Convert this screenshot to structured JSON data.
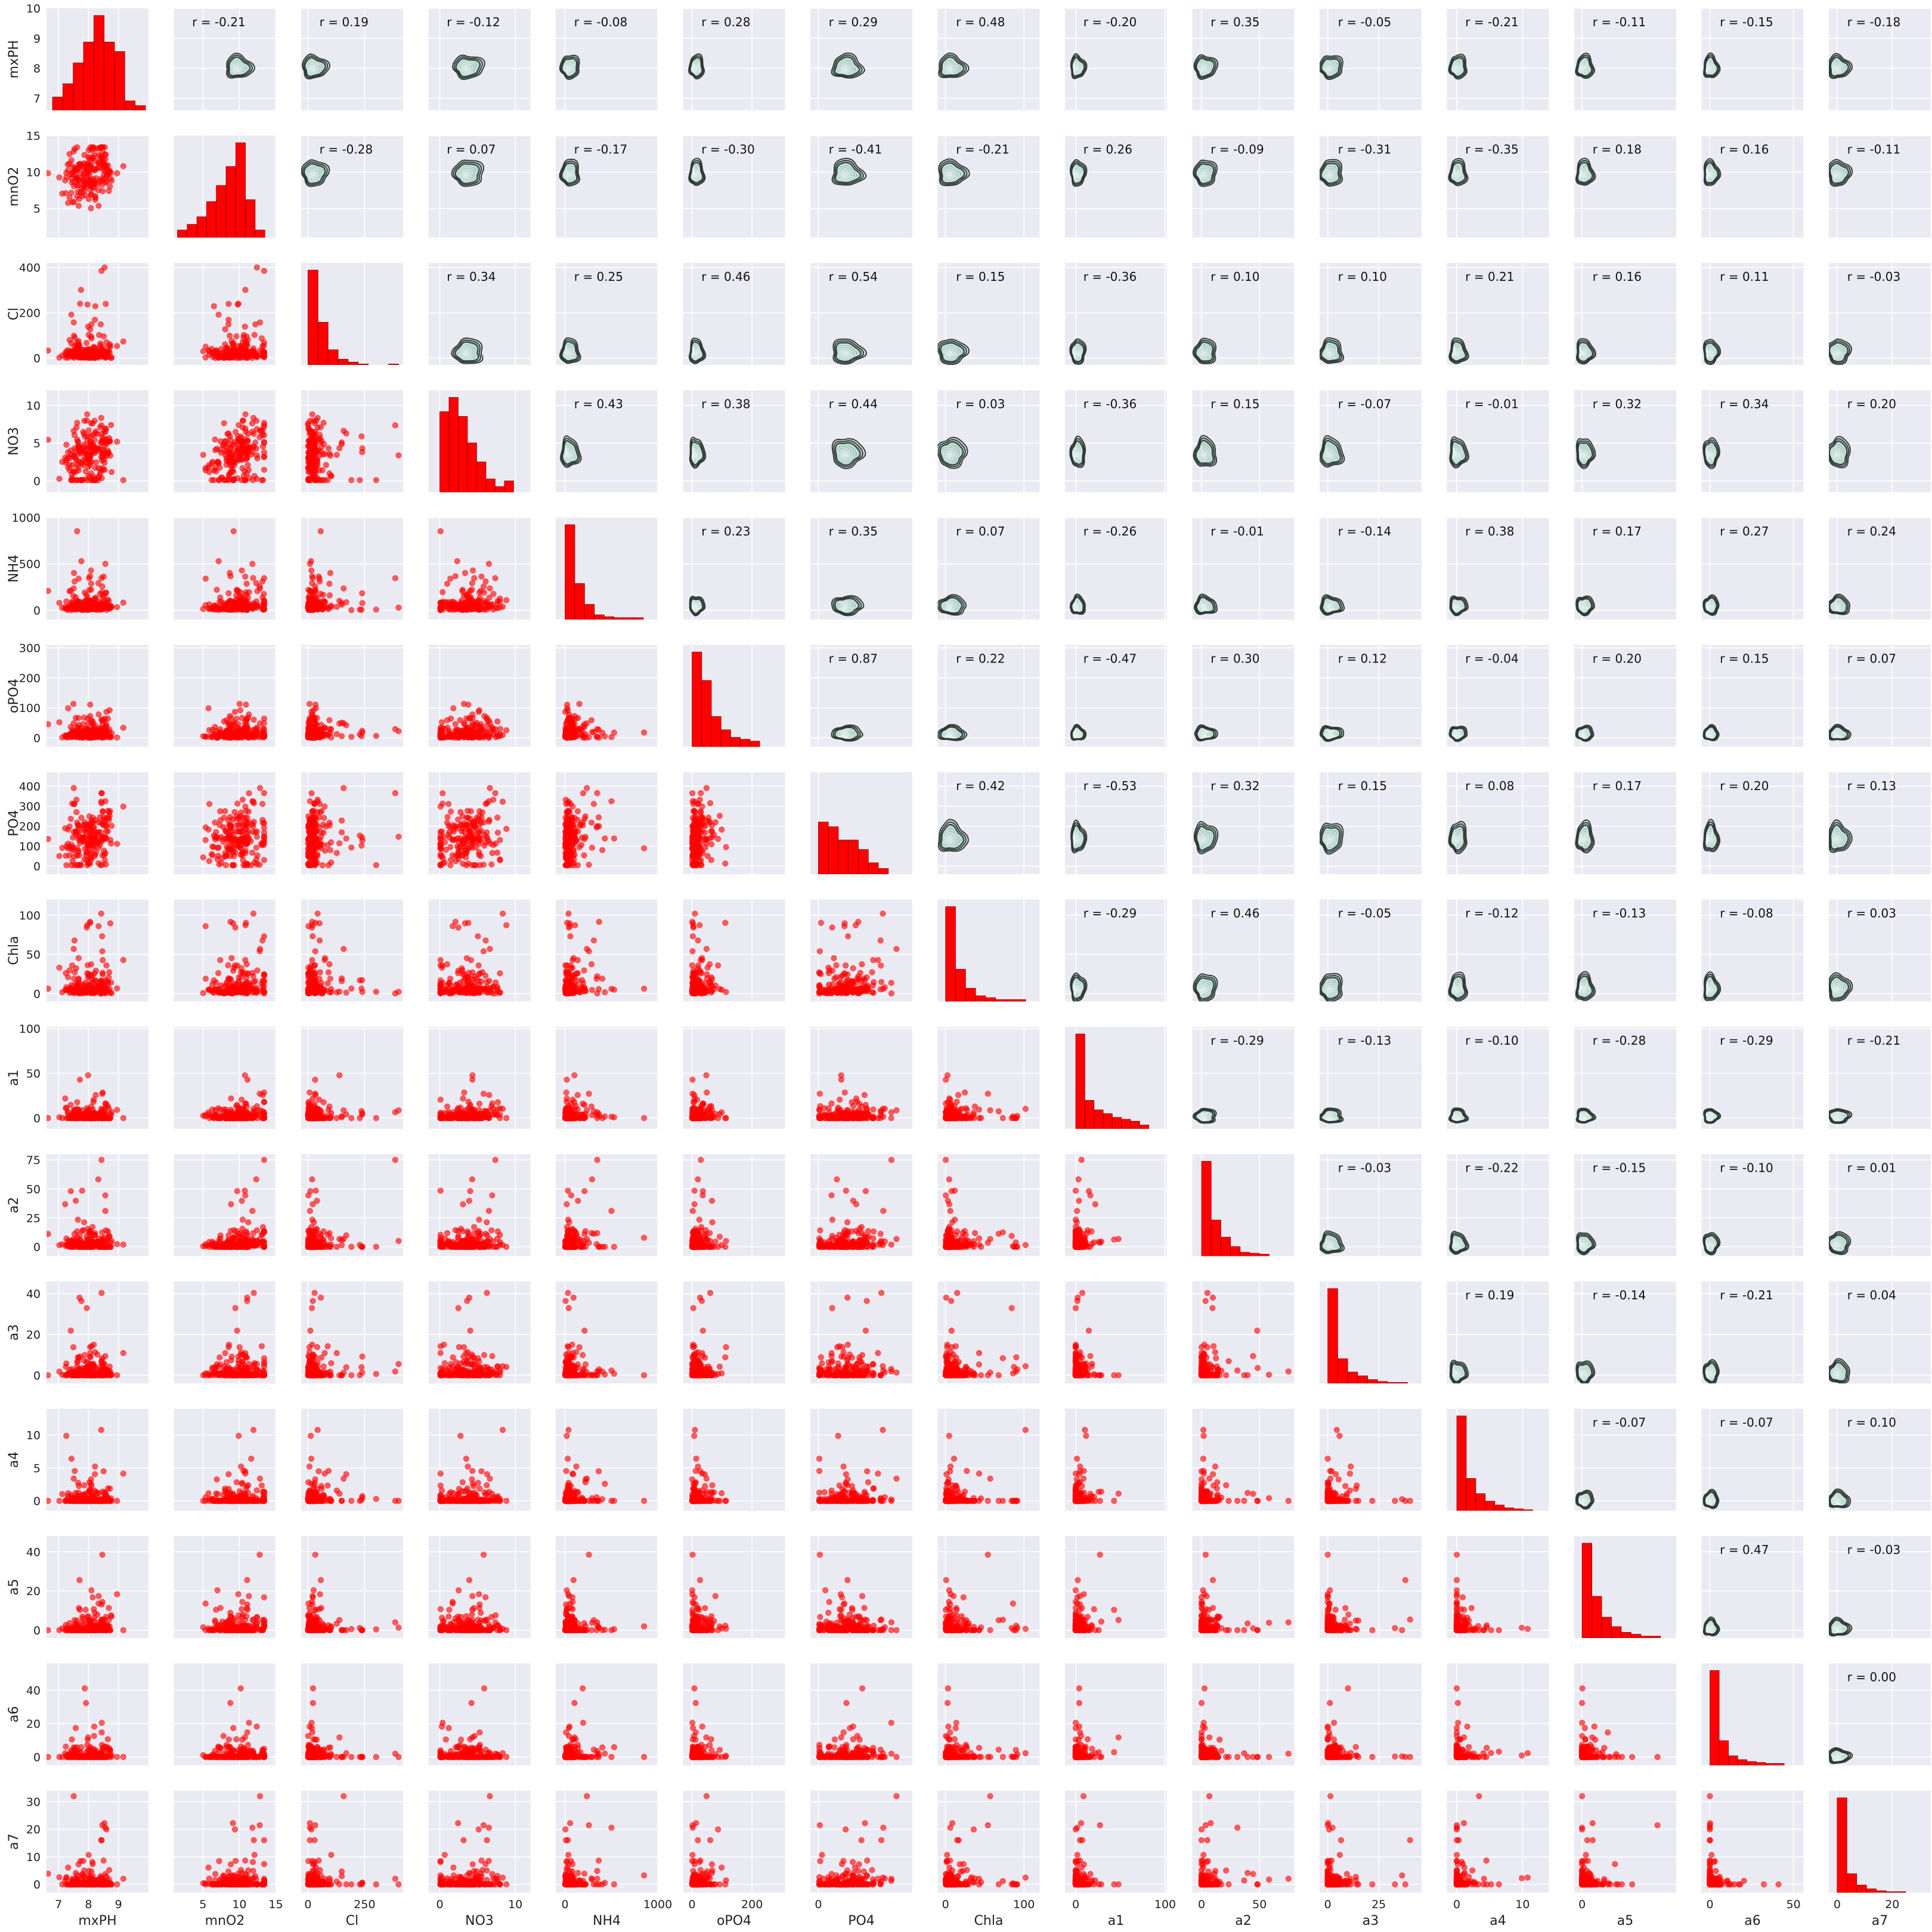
{
  "chart_data": {
    "type": "scatter-matrix",
    "variables": [
      "mxPH",
      "mnO2",
      "Cl",
      "NO3",
      "NH4",
      "oPO4",
      "PO4",
      "Chla",
      "a1",
      "a2",
      "a3",
      "a4",
      "a5",
      "a6",
      "a7"
    ],
    "ranges": {
      "mxPH": [
        6.6,
        10.0
      ],
      "mnO2": [
        1.0,
        15.0
      ],
      "Cl": [
        -30,
        420
      ],
      "NO3": [
        -1.5,
        12
      ],
      "NH4": [
        -100,
        1000
      ],
      "oPO4": [
        -30,
        310
      ],
      "PO4": [
        -40,
        470
      ],
      "Chla": [
        -10,
        120
      ],
      "a1": [
        -12,
        102
      ],
      "a2": [
        -8,
        80
      ],
      "a3": [
        -4,
        46
      ],
      "a4": [
        -1.5,
        14
      ],
      "a5": [
        -4,
        48
      ],
      "a6": [
        -5,
        56
      ],
      "a7": [
        -3,
        34
      ]
    },
    "yticks": {
      "mxPH": [
        7,
        8,
        9,
        10
      ],
      "mnO2": [
        5,
        10,
        15
      ],
      "Cl": [
        0,
        200,
        400
      ],
      "NO3": [
        0,
        5,
        10
      ],
      "NH4": [
        0,
        500,
        1000
      ],
      "oPO4": [
        0,
        100,
        200,
        300
      ],
      "PO4": [
        0,
        100,
        200,
        300,
        400
      ],
      "Chla": [
        0,
        50,
        100
      ],
      "a1": [
        0,
        50,
        100
      ],
      "a2": [
        0,
        25,
        50,
        75
      ],
      "a3": [
        0,
        20,
        40
      ],
      "a4": [
        0,
        5,
        10
      ],
      "a5": [
        0,
        20,
        40
      ],
      "a6": [
        0,
        20,
        40
      ],
      "a7": [
        0,
        10,
        20,
        30
      ]
    },
    "xticks": {
      "mxPH": [
        7,
        8,
        9
      ],
      "mnO2": [
        5,
        10,
        15
      ],
      "Cl": [
        0,
        250
      ],
      "NO3": [
        0,
        10
      ],
      "NH4": [
        0,
        1000
      ],
      "oPO4": [
        0,
        200
      ],
      "PO4": [
        0,
        500
      ],
      "Chla": [
        0,
        100
      ],
      "a1": [
        0,
        100
      ],
      "a2": [
        0,
        50
      ],
      "a3": [
        0,
        25
      ],
      "a4": [
        0,
        10
      ],
      "a5": [
        0,
        50
      ],
      "a6": [
        0,
        50
      ],
      "a7": [
        0,
        20
      ]
    },
    "correlations": [
      [
        "mnO2",
        "mxPH",
        "r = -0.21"
      ],
      [
        "Cl",
        "mxPH",
        "r = 0.19"
      ],
      [
        "NO3",
        "mxPH",
        "r = -0.12"
      ],
      [
        "NH4",
        "mxPH",
        "r = -0.08"
      ],
      [
        "oPO4",
        "mxPH",
        "r = 0.28"
      ],
      [
        "PO4",
        "mxPH",
        "r = 0.29"
      ],
      [
        "Chla",
        "mxPH",
        "r = 0.48"
      ],
      [
        "a1",
        "mxPH",
        "r = -0.20"
      ],
      [
        "a2",
        "mxPH",
        "r = 0.35"
      ],
      [
        "a3",
        "mxPH",
        "r = -0.05"
      ],
      [
        "a4",
        "mxPH",
        "r = -0.21"
      ],
      [
        "a5",
        "mxPH",
        "r = -0.11"
      ],
      [
        "a6",
        "mxPH",
        "r = -0.15"
      ],
      [
        "a7",
        "mxPH",
        "r = -0.18"
      ],
      [
        "Cl",
        "mnO2",
        "r = -0.28"
      ],
      [
        "NO3",
        "mnO2",
        "r = 0.07"
      ],
      [
        "NH4",
        "mnO2",
        "r = -0.17"
      ],
      [
        "oPO4",
        "mnO2",
        "r = -0.30"
      ],
      [
        "PO4",
        "mnO2",
        "r = -0.41"
      ],
      [
        "Chla",
        "mnO2",
        "r = -0.21"
      ],
      [
        "a1",
        "mnO2",
        "r = 0.26"
      ],
      [
        "a2",
        "mnO2",
        "r = -0.09"
      ],
      [
        "a3",
        "mnO2",
        "r = -0.31"
      ],
      [
        "a4",
        "mnO2",
        "r = -0.35"
      ],
      [
        "a5",
        "mnO2",
        "r = 0.18"
      ],
      [
        "a6",
        "mnO2",
        "r = 0.16"
      ],
      [
        "a7",
        "mnO2",
        "r = -0.11"
      ],
      [
        "NO3",
        "Cl",
        "r = 0.34"
      ],
      [
        "NH4",
        "Cl",
        "r = 0.25"
      ],
      [
        "oPO4",
        "Cl",
        "r = 0.46"
      ],
      [
        "PO4",
        "Cl",
        "r = 0.54"
      ],
      [
        "Chla",
        "Cl",
        "r = 0.15"
      ],
      [
        "a1",
        "Cl",
        "r = -0.36"
      ],
      [
        "a2",
        "Cl",
        "r = 0.10"
      ],
      [
        "a3",
        "Cl",
        "r = 0.10"
      ],
      [
        "a4",
        "Cl",
        "r = 0.21"
      ],
      [
        "a5",
        "Cl",
        "r = 0.16"
      ],
      [
        "a6",
        "Cl",
        "r = 0.11"
      ],
      [
        "a7",
        "Cl",
        "r = -0.03"
      ],
      [
        "NH4",
        "NO3",
        "r = 0.43"
      ],
      [
        "oPO4",
        "NO3",
        "r = 0.38"
      ],
      [
        "PO4",
        "NO3",
        "r = 0.44"
      ],
      [
        "Chla",
        "NO3",
        "r = 0.03"
      ],
      [
        "a1",
        "NO3",
        "r = -0.36"
      ],
      [
        "a2",
        "NO3",
        "r = 0.15"
      ],
      [
        "a3",
        "NO3",
        "r = -0.07"
      ],
      [
        "a4",
        "NO3",
        "r = -0.01"
      ],
      [
        "a5",
        "NO3",
        "r = 0.32"
      ],
      [
        "a6",
        "NO3",
        "r = 0.34"
      ],
      [
        "a7",
        "NO3",
        "r = 0.20"
      ],
      [
        "oPO4",
        "NH4",
        "r = 0.23"
      ],
      [
        "PO4",
        "NH4",
        "r = 0.35"
      ],
      [
        "Chla",
        "NH4",
        "r = 0.07"
      ],
      [
        "a1",
        "NH4",
        "r = -0.26"
      ],
      [
        "a2",
        "NH4",
        "r = -0.01"
      ],
      [
        "a3",
        "NH4",
        "r = -0.14"
      ],
      [
        "a4",
        "NH4",
        "r = 0.38"
      ],
      [
        "a5",
        "NH4",
        "r = 0.17"
      ],
      [
        "a6",
        "NH4",
        "r = 0.27"
      ],
      [
        "a7",
        "NH4",
        "r = 0.24"
      ],
      [
        "PO4",
        "oPO4",
        "r = 0.87"
      ],
      [
        "Chla",
        "oPO4",
        "r = 0.22"
      ],
      [
        "a1",
        "oPO4",
        "r = -0.47"
      ],
      [
        "a2",
        "oPO4",
        "r = 0.30"
      ],
      [
        "a3",
        "oPO4",
        "r = 0.12"
      ],
      [
        "a4",
        "oPO4",
        "r = -0.04"
      ],
      [
        "a5",
        "oPO4",
        "r = 0.20"
      ],
      [
        "a6",
        "oPO4",
        "r = 0.15"
      ],
      [
        "a7",
        "oPO4",
        "r = 0.07"
      ],
      [
        "Chla",
        "PO4",
        "r = 0.42"
      ],
      [
        "a1",
        "PO4",
        "r = -0.53"
      ],
      [
        "a2",
        "PO4",
        "r = 0.32"
      ],
      [
        "a3",
        "PO4",
        "r = 0.15"
      ],
      [
        "a4",
        "PO4",
        "r = 0.08"
      ],
      [
        "a5",
        "PO4",
        "r = 0.17"
      ],
      [
        "a6",
        "PO4",
        "r = 0.20"
      ],
      [
        "a7",
        "PO4",
        "r = 0.13"
      ],
      [
        "a1",
        "Chla",
        "r = -0.29"
      ],
      [
        "a2",
        "Chla",
        "r = 0.46"
      ],
      [
        "a3",
        "Chla",
        "r = -0.05"
      ],
      [
        "a4",
        "Chla",
        "r = -0.12"
      ],
      [
        "a5",
        "Chla",
        "r = -0.13"
      ],
      [
        "a6",
        "Chla",
        "r = -0.08"
      ],
      [
        "a7",
        "Chla",
        "r = 0.03"
      ],
      [
        "a2",
        "a1",
        "r = -0.29"
      ],
      [
        "a3",
        "a1",
        "r = -0.13"
      ],
      [
        "a4",
        "a1",
        "r = -0.10"
      ],
      [
        "a5",
        "a1",
        "r = -0.28"
      ],
      [
        "a6",
        "a1",
        "r = -0.29"
      ],
      [
        "a7",
        "a1",
        "r = -0.21"
      ],
      [
        "a3",
        "a2",
        "r = -0.03"
      ],
      [
        "a4",
        "a2",
        "r = -0.22"
      ],
      [
        "a5",
        "a2",
        "r = -0.15"
      ],
      [
        "a6",
        "a2",
        "r = -0.10"
      ],
      [
        "a7",
        "a2",
        "r = 0.01"
      ],
      [
        "a4",
        "a3",
        "r = 0.19"
      ],
      [
        "a5",
        "a3",
        "r = -0.14"
      ],
      [
        "a6",
        "a3",
        "r = -0.21"
      ],
      [
        "a7",
        "a3",
        "r = 0.04"
      ],
      [
        "a5",
        "a4",
        "r = -0.07"
      ],
      [
        "a6",
        "a4",
        "r = -0.07"
      ],
      [
        "a7",
        "a4",
        "r = 0.10"
      ],
      [
        "a6",
        "a5",
        "r = 0.47"
      ],
      [
        "a7",
        "a5",
        "r = -0.03"
      ],
      [
        "a7",
        "a6",
        "r = 0.00"
      ]
    ],
    "histograms": {
      "mxPH": [
        0.14,
        0.28,
        0.5,
        0.72,
        1.0,
        0.72,
        0.62,
        0.1,
        0.05
      ],
      "mnO2": [
        0.08,
        0.14,
        0.22,
        0.38,
        0.55,
        0.75,
        1.0,
        0.4,
        0.08
      ],
      "Cl": [
        1.0,
        0.45,
        0.16,
        0.06,
        0.03,
        0.01,
        0.0,
        0.0,
        0.01
      ],
      "NO3": [
        0.85,
        1.0,
        0.8,
        0.52,
        0.32,
        0.14,
        0.06,
        0.12,
        0.0
      ],
      "NH4": [
        1.0,
        0.38,
        0.16,
        0.05,
        0.03,
        0.02,
        0.02,
        0.02,
        0.0
      ],
      "oPO4": [
        1.0,
        0.7,
        0.32,
        0.18,
        0.1,
        0.08,
        0.06,
        0.0,
        0.0
      ],
      "PO4": [
        0.55,
        0.5,
        0.36,
        0.36,
        0.26,
        0.12,
        0.06,
        0.0,
        0.0
      ],
      "Chla": [
        1.0,
        0.34,
        0.14,
        0.06,
        0.04,
        0.02,
        0.02,
        0.02,
        0.0
      ],
      "a1": [
        1.0,
        0.3,
        0.2,
        0.16,
        0.12,
        0.1,
        0.08,
        0.04,
        0.0
      ],
      "a2": [
        1.0,
        0.38,
        0.2,
        0.1,
        0.04,
        0.03,
        0.02,
        0.0,
        0.0
      ],
      "a3": [
        1.0,
        0.26,
        0.12,
        0.08,
        0.04,
        0.02,
        0.01,
        0.01,
        0.0
      ],
      "a4": [
        1.0,
        0.34,
        0.18,
        0.1,
        0.06,
        0.03,
        0.02,
        0.01,
        0.0
      ],
      "a5": [
        1.0,
        0.44,
        0.22,
        0.12,
        0.06,
        0.04,
        0.02,
        0.02,
        0.0
      ],
      "a6": [
        1.0,
        0.26,
        0.1,
        0.06,
        0.04,
        0.03,
        0.02,
        0.02,
        0.0
      ],
      "a7": [
        1.0,
        0.2,
        0.08,
        0.04,
        0.02,
        0.01,
        0.01,
        0.0,
        0.0
      ]
    },
    "hist_bins": {
      "mxPH": [
        6.8,
        9.9
      ],
      "mnO2": [
        1.5,
        13.5
      ],
      "Cl": [
        0,
        400
      ],
      "NO3": [
        0,
        11
      ],
      "NH4": [
        0,
        950
      ],
      "oPO4": [
        0,
        290
      ],
      "PO4": [
        0,
        450
      ],
      "Chla": [
        0,
        115
      ],
      "a1": [
        0,
        92
      ],
      "a2": [
        0,
        75
      ],
      "a3": [
        0,
        44
      ],
      "a4": [
        0,
        13
      ],
      "a5": [
        0,
        45
      ],
      "a6": [
        0,
        50
      ],
      "a7": [
        0,
        32
      ]
    },
    "grid": true,
    "marker_color": "#ff0000",
    "hist_color": "#ff0000",
    "contour_fill": "#5aa38b",
    "contour_line": "#2f3b36",
    "panel_background": "#eaeaf2"
  }
}
